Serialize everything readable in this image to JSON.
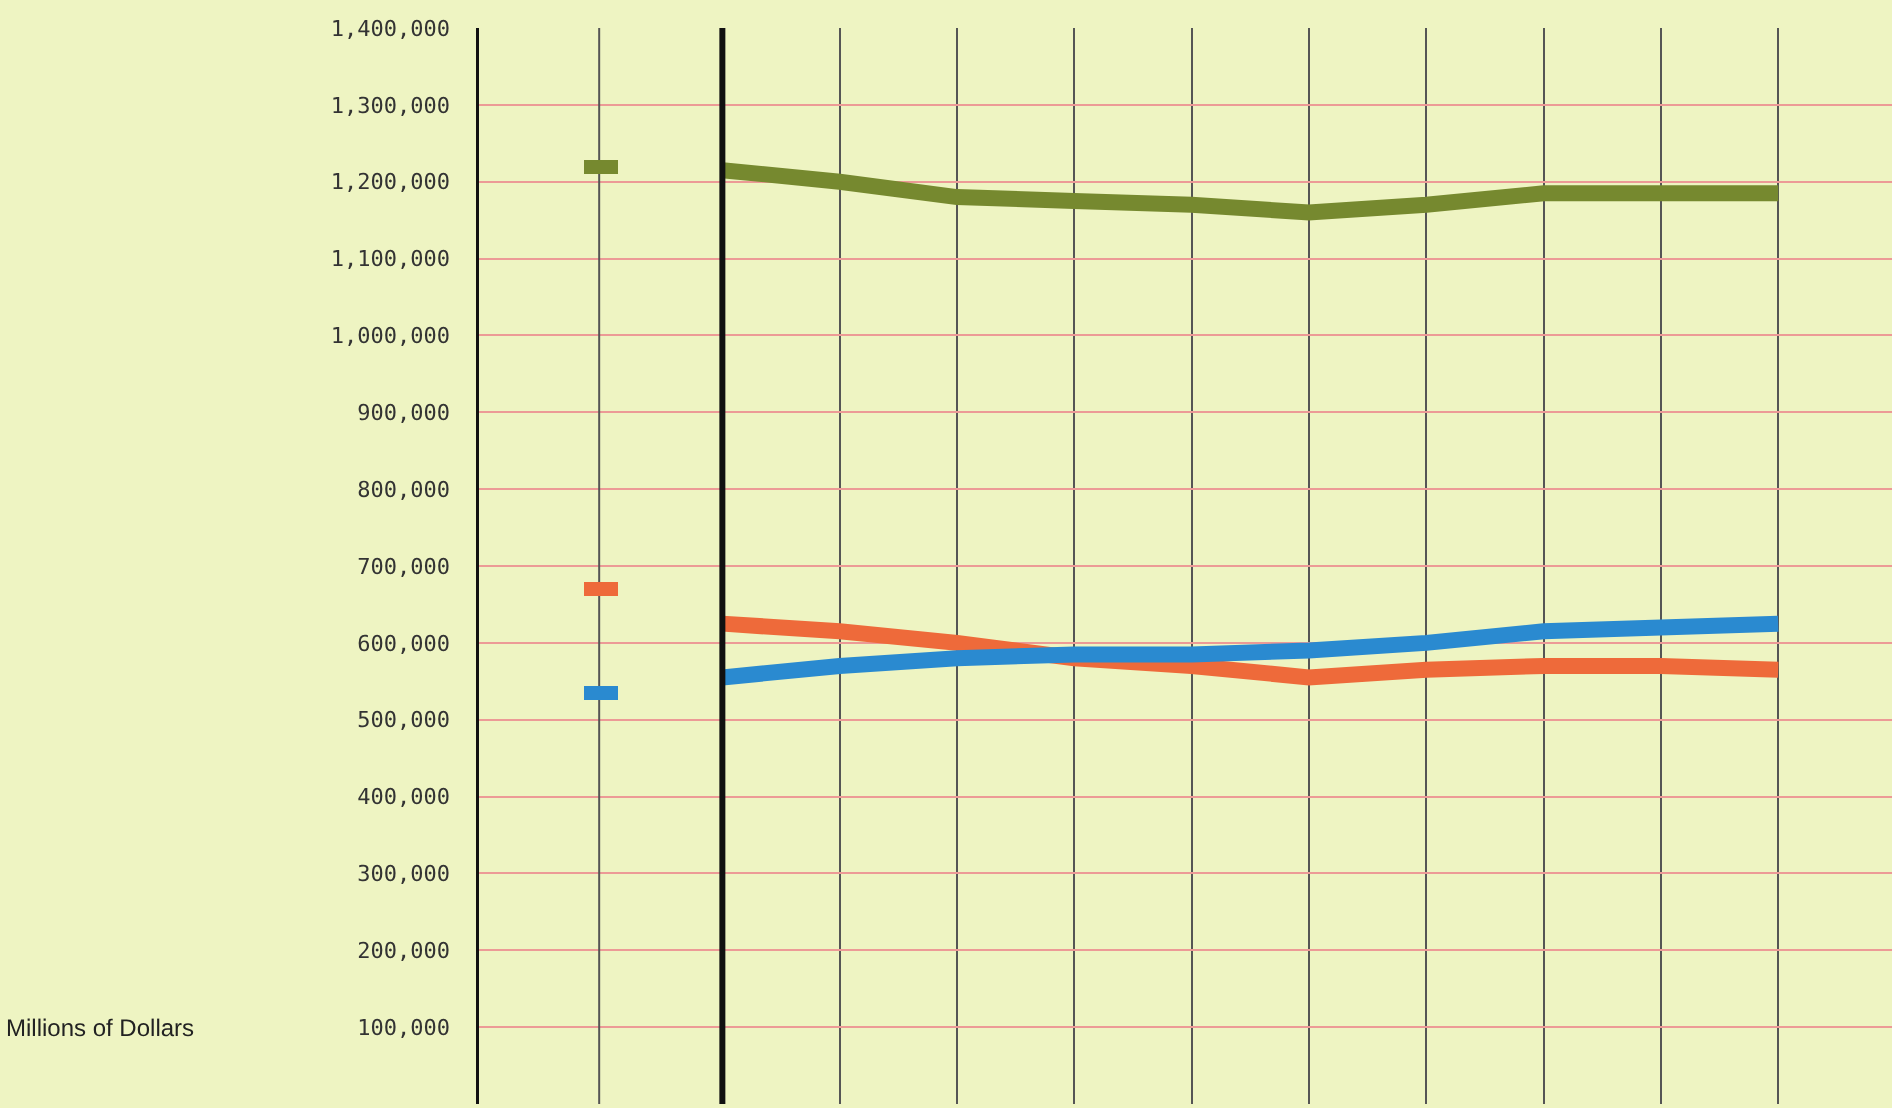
{
  "chart_data": {
    "type": "line",
    "annotations": [
      "Millions of Dollars"
    ],
    "categories": [
      null,
      null,
      null,
      null,
      null,
      null,
      null,
      null,
      null,
      null
    ],
    "series": [
      {
        "color": "#76892f",
        "values": [
          1215000,
          1200000,
          1180000,
          1175000,
          1170000,
          1160000,
          1170000,
          1185000,
          1185000,
          1185000
        ]
      },
      {
        "color": "#ee6a3a",
        "values": [
          625000,
          615000,
          600000,
          580000,
          570000,
          555000,
          565000,
          570000,
          570000,
          565000
        ]
      },
      {
        "color": "#2a8ad0",
        "values": [
          555000,
          570000,
          580000,
          585000,
          585000,
          590000,
          600000,
          615000,
          620000,
          625000
        ]
      }
    ],
    "ylim": [
      0,
      1400000
    ],
    "yticks": [
      {
        "value": 100000,
        "label": "100,000"
      },
      {
        "value": 200000,
        "label": "200,000"
      },
      {
        "value": 300000,
        "label": "300,000"
      },
      {
        "value": 400000,
        "label": "400,000"
      },
      {
        "value": 500000,
        "label": "500,000"
      },
      {
        "value": 600000,
        "label": "600,000"
      },
      {
        "value": 700000,
        "label": "700,000"
      },
      {
        "value": 800000,
        "label": "800,000"
      },
      {
        "value": 900000,
        "label": "900,000"
      },
      {
        "value": 1000000,
        "label": "1,000,000"
      },
      {
        "value": 1100000,
        "label": "1,100,000"
      },
      {
        "value": 1200000,
        "label": "1,200,000"
      },
      {
        "value": 1300000,
        "label": "1,300,000"
      },
      {
        "value": 1400000,
        "label": "1,400,000"
      }
    ],
    "grid": true,
    "marker": "none",
    "line_style": "solid"
  }
}
